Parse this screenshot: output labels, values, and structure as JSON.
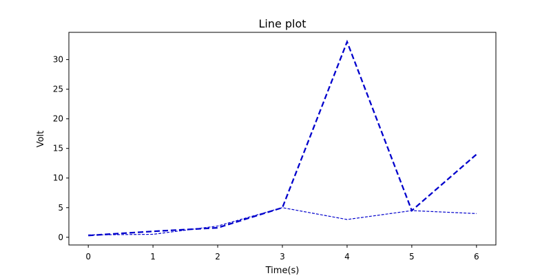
{
  "chart_data": {
    "type": "line",
    "title": "Line plot",
    "xlabel": "Time(s)",
    "ylabel": "Volt",
    "xlim": [
      -0.3,
      6.3
    ],
    "ylim": [
      -1.3,
      34.6
    ],
    "xticks": [
      0,
      1,
      2,
      3,
      4,
      5,
      6
    ],
    "yticks": [
      0,
      5,
      10,
      15,
      20,
      25,
      30
    ],
    "grid": false,
    "series": [
      {
        "x": [
          0,
          1,
          2,
          3,
          4,
          5,
          6
        ],
        "y": [
          0.3,
          1.0,
          1.6,
          5.0,
          33.0,
          4.5,
          14.0
        ],
        "color": "#0000cc",
        "style": "dashed-thick"
      },
      {
        "x": [
          0,
          1,
          2,
          3,
          4,
          5,
          6
        ],
        "y": [
          0.4,
          0.5,
          1.9,
          5.0,
          3.0,
          4.5,
          4.0
        ],
        "color": "#0000cc",
        "style": "dashed-thin"
      }
    ]
  }
}
